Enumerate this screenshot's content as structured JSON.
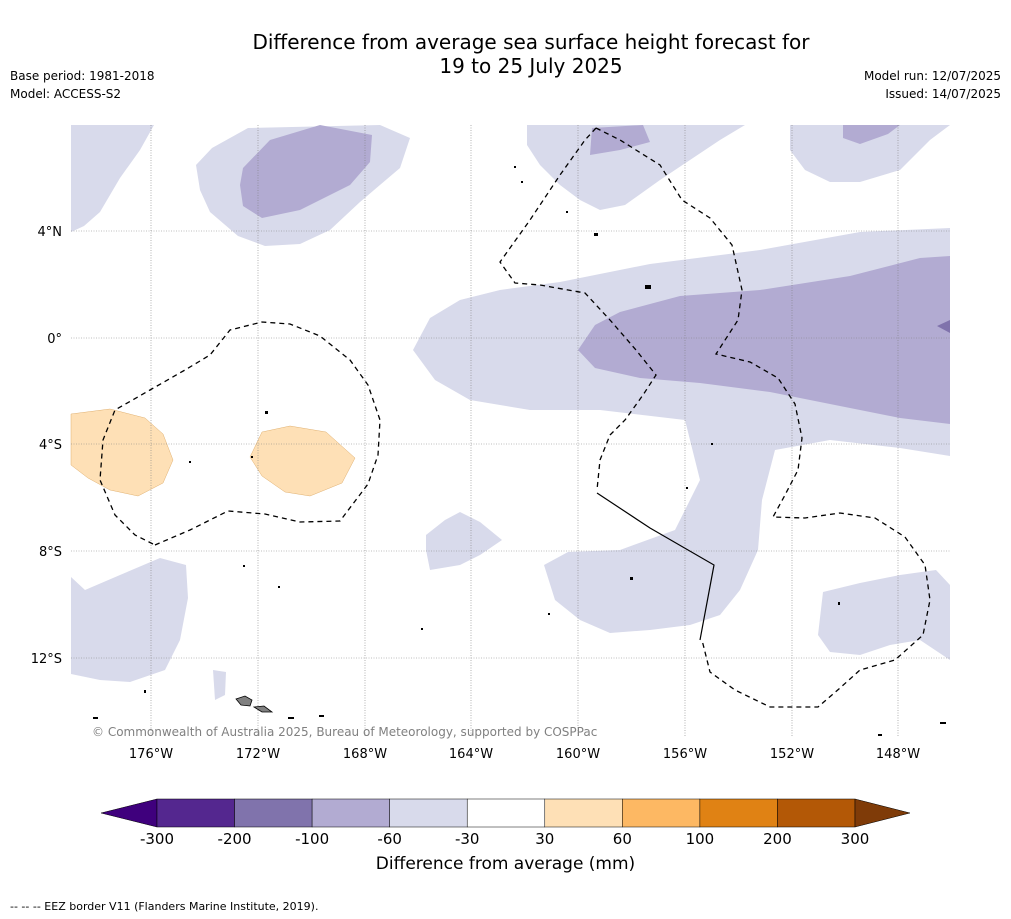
{
  "title_line1": "Difference from average sea surface height forecast for",
  "title_line2": "19 to 25 July 2025",
  "base_period": "Base period: 1981-2018",
  "model": "Model: ACCESS-S2",
  "model_run": "Model run: 12/07/2025",
  "issued": "Issued: 14/07/2025",
  "copyright": "© Commonwealth of Australia 2025, Bureau of Meteorology, supported by COSPPac",
  "lat_labels": [
    "4°N",
    "0°",
    "4°S",
    "8°S",
    "12°S"
  ],
  "lon_labels": [
    "176°W",
    "172°W",
    "168°W",
    "164°W",
    "160°W",
    "156°W",
    "152°W",
    "148°W"
  ],
  "colorbar": {
    "label": "Difference from average (mm)",
    "ticks": [
      "-300",
      "-200",
      "-100",
      "-60",
      "-30",
      "30",
      "60",
      "100",
      "200",
      "300"
    ],
    "colors": [
      "#3f007d",
      "#54278f",
      "#8073ac",
      "#b2abd2",
      "#d8daeb",
      "#ffffff",
      "#fee0b6",
      "#fdb863",
      "#e08214",
      "#b35806",
      "#7f3b08"
    ]
  },
  "eez_note": "--  --  -- EEZ border V11 (Flanders Marine Institute, 2019)."
}
